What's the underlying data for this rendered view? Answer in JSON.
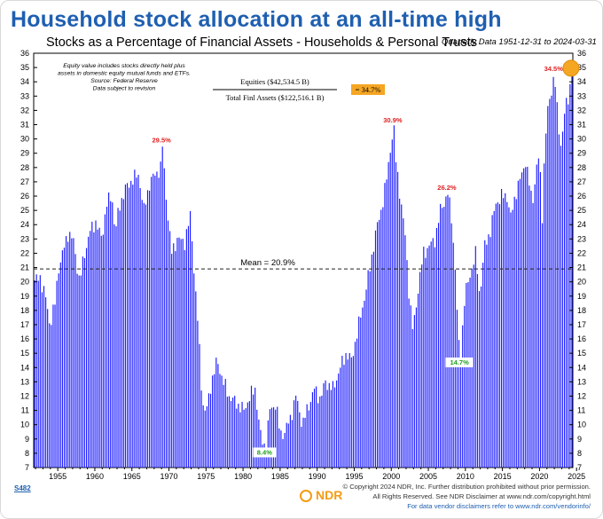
{
  "headline": "Household stock allocation at an all-time high",
  "chart_data": {
    "type": "bar",
    "title": "Stocks as a Percentage of Financial Assets - Households & Personal Trusts",
    "date_range": "Quarterly Data 1951-12-31 to 2024-03-31",
    "ylim": [
      7,
      36
    ],
    "yticks": [
      7,
      8,
      9,
      10,
      11,
      12,
      13,
      14,
      15,
      16,
      17,
      18,
      19,
      20,
      21,
      22,
      23,
      24,
      25,
      26,
      27,
      28,
      29,
      30,
      31,
      32,
      33,
      34,
      35,
      36
    ],
    "xlim": [
      1951.75,
      2024.5
    ],
    "xticks": [
      1955,
      1960,
      1965,
      1970,
      1975,
      1980,
      1985,
      1990,
      1995,
      2000,
      2005,
      2010,
      2015,
      2020,
      2025
    ],
    "bar_color": "#1a1aff",
    "anchors": [
      [
        1951.9,
        20.1
      ],
      [
        1952.5,
        20.3
      ],
      [
        1953.2,
        19.0
      ],
      [
        1953.8,
        17.0
      ],
      [
        1954.5,
        18.5
      ],
      [
        1955.0,
        21.0
      ],
      [
        1955.8,
        22.5
      ],
      [
        1956.3,
        23.5
      ],
      [
        1957.0,
        22.8
      ],
      [
        1957.8,
        20.0
      ],
      [
        1958.5,
        22.0
      ],
      [
        1959.2,
        23.5
      ],
      [
        1960.0,
        24.2
      ],
      [
        1960.8,
        23.0
      ],
      [
        1961.5,
        25.5
      ],
      [
        1962.2,
        26.0
      ],
      [
        1962.6,
        23.5
      ],
      [
        1963.3,
        25.5
      ],
      [
        1964.0,
        26.5
      ],
      [
        1965.0,
        27.2
      ],
      [
        1965.8,
        27.5
      ],
      [
        1966.5,
        25.0
      ],
      [
        1967.3,
        27.0
      ],
      [
        1968.0,
        27.5
      ],
      [
        1968.8,
        28.0
      ],
      [
        1969.0,
        29.5
      ],
      [
        1969.5,
        26.0
      ],
      [
        1970.2,
        22.0
      ],
      [
        1971.0,
        23.0
      ],
      [
        1972.0,
        22.8
      ],
      [
        1972.8,
        24.7
      ],
      [
        1973.3,
        20.5
      ],
      [
        1973.8,
        17.0
      ],
      [
        1974.4,
        11.5
      ],
      [
        1974.9,
        10.8
      ],
      [
        1975.6,
        13.0
      ],
      [
        1976.4,
        14.5
      ],
      [
        1977.2,
        13.0
      ],
      [
        1978.0,
        12.0
      ],
      [
        1979.0,
        11.5
      ],
      [
        1980.0,
        11.0
      ],
      [
        1980.8,
        12.0
      ],
      [
        1981.5,
        12.5
      ],
      [
        1982.3,
        9.0
      ],
      [
        1982.9,
        8.4
      ],
      [
        1983.5,
        11.0
      ],
      [
        1984.3,
        11.5
      ],
      [
        1984.9,
        9.3
      ],
      [
        1985.5,
        9.5
      ],
      [
        1986.3,
        10.5
      ],
      [
        1987.0,
        12.0
      ],
      [
        1987.9,
        10.0
      ],
      [
        1988.5,
        11.0
      ],
      [
        1989.5,
        12.5
      ],
      [
        1990.3,
        11.8
      ],
      [
        1991.0,
        13.0
      ],
      [
        1992.0,
        12.5
      ],
      [
        1993.0,
        14.0
      ],
      [
        1993.8,
        15.0
      ],
      [
        1994.5,
        14.5
      ],
      [
        1995.5,
        17.0
      ],
      [
        1996.3,
        19.0
      ],
      [
        1997.0,
        21.0
      ],
      [
        1997.8,
        23.5
      ],
      [
        1998.5,
        25.0
      ],
      [
        1999.2,
        27.0
      ],
      [
        1999.8,
        29.5
      ],
      [
        2000.2,
        30.9
      ],
      [
        2000.5,
        28.5
      ],
      [
        2001.2,
        25.5
      ],
      [
        2001.8,
        23.0
      ],
      [
        2002.3,
        19.0
      ],
      [
        2002.8,
        16.5
      ],
      [
        2003.5,
        19.5
      ],
      [
        2004.2,
        22.0
      ],
      [
        2005.0,
        22.5
      ],
      [
        2005.8,
        23.0
      ],
      [
        2006.5,
        25.0
      ],
      [
        2007.2,
        25.8
      ],
      [
        2007.5,
        26.2
      ],
      [
        2008.0,
        24.5
      ],
      [
        2008.5,
        21.0
      ],
      [
        2008.9,
        16.0
      ],
      [
        2009.2,
        14.7
      ],
      [
        2009.8,
        19.0
      ],
      [
        2010.5,
        20.5
      ],
      [
        2011.3,
        22.0
      ],
      [
        2011.8,
        19.0
      ],
      [
        2012.5,
        22.5
      ],
      [
        2013.2,
        23.5
      ],
      [
        2014.0,
        25.5
      ],
      [
        2014.8,
        26.0
      ],
      [
        2015.5,
        26.0
      ],
      [
        2016.0,
        24.5
      ],
      [
        2016.8,
        26.5
      ],
      [
        2017.5,
        27.5
      ],
      [
        2018.0,
        28.5
      ],
      [
        2018.9,
        25.5
      ],
      [
        2019.5,
        28.0
      ],
      [
        2019.9,
        29.0
      ],
      [
        2020.2,
        24.0
      ],
      [
        2020.6,
        29.5
      ],
      [
        2021.0,
        32.0
      ],
      [
        2021.5,
        33.5
      ],
      [
        2021.9,
        34.5
      ],
      [
        2022.4,
        31.0
      ],
      [
        2022.8,
        29.5
      ],
      [
        2023.3,
        32.0
      ],
      [
        2023.8,
        33.0
      ],
      [
        2024.25,
        34.7
      ]
    ],
    "mean": 20.9,
    "mean_label": "Mean = 20.9%",
    "annotations": [
      {
        "x": 1969.0,
        "y": 29.5,
        "text": "29.5%",
        "color": "#e02020"
      },
      {
        "x": 2000.2,
        "y": 30.9,
        "text": "30.9%",
        "color": "#e02020"
      },
      {
        "x": 2007.5,
        "y": 26.2,
        "text": "26.2%",
        "color": "#e02020"
      },
      {
        "x": 2021.9,
        "y": 34.5,
        "text": "34.5%",
        "color": "#e02020"
      },
      {
        "x": 1982.9,
        "y": 8.4,
        "text": "8.4%",
        "color": "#20a020"
      },
      {
        "x": 2009.2,
        "y": 14.7,
        "text": "14.7%",
        "color": "#20a020"
      }
    ],
    "note_lines": [
      "Equity value includes stocks directly held plus",
      "assets in domestic equity mutual funds and ETFs.",
      "Source: Federal Reserve",
      "Data subject to revision"
    ],
    "ratio": {
      "numerator": "Equities ($42,534.5 B)",
      "denominator": "Total Finl Assets ($122,516.1 B)",
      "result": "= 34.7%"
    },
    "highlight_color": "#f5a623"
  },
  "footer": {
    "code": "S482",
    "logo": "NDR",
    "line1": "© Copyright 2024 NDR, Inc. Further distribution prohibited without prior permission.",
    "line2": "All Rights Reserved. See NDR Disclaimer at www.ndr.com/copyright.html",
    "line3": "For data vendor disclaimers refer to www.ndr.com/vendorinfo/"
  }
}
